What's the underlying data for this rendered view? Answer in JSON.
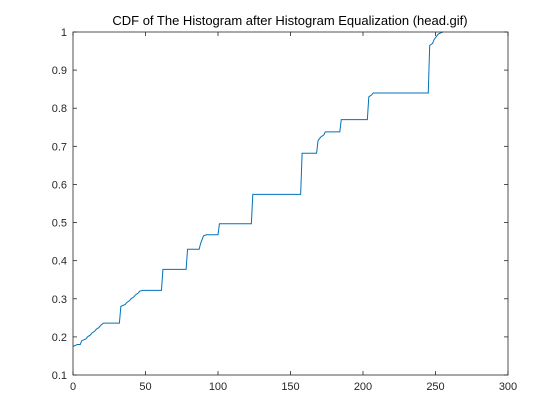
{
  "chart_data": {
    "type": "line",
    "title": "CDF of The Histogram after Histogram Equalization (head.gif)",
    "xlabel": "",
    "ylabel": "",
    "xlim": [
      0,
      300
    ],
    "ylim": [
      0.1,
      1
    ],
    "xticks": [
      0,
      50,
      100,
      150,
      200,
      250,
      300
    ],
    "xtick_labels": [
      "0",
      "50",
      "100",
      "150",
      "200",
      "250",
      "300"
    ],
    "yticks": [
      0.1,
      0.2,
      0.3,
      0.4,
      0.5,
      0.6,
      0.7,
      0.8,
      0.9,
      1.0
    ],
    "ytick_labels": [
      "0.1",
      "0.2",
      "0.3",
      "0.4",
      "0.5",
      "0.6",
      "0.7",
      "0.8",
      "0.9",
      "1"
    ],
    "grid": false,
    "legend": "none",
    "line_color": "#0072bd",
    "series": [
      {
        "x": [
          0,
          3,
          5,
          6,
          9,
          10,
          12,
          13,
          15,
          16,
          18,
          19,
          21,
          32,
          33,
          36,
          37,
          39,
          40,
          42,
          43,
          45,
          46,
          48,
          61,
          62,
          78,
          79,
          87,
          88,
          89,
          90,
          92,
          100,
          101,
          123,
          124,
          157,
          158,
          168,
          169,
          170,
          171,
          173,
          174,
          184,
          185,
          203,
          204,
          206,
          207,
          245,
          246,
          248,
          249,
          251,
          252,
          255
        ],
        "y": [
          0.175,
          0.18,
          0.18,
          0.19,
          0.195,
          0.2,
          0.205,
          0.21,
          0.215,
          0.22,
          0.225,
          0.23,
          0.236,
          0.236,
          0.28,
          0.285,
          0.29,
          0.295,
          0.3,
          0.305,
          0.31,
          0.315,
          0.32,
          0.322,
          0.322,
          0.377,
          0.377,
          0.43,
          0.43,
          0.445,
          0.455,
          0.465,
          0.468,
          0.468,
          0.497,
          0.497,
          0.574,
          0.574,
          0.682,
          0.682,
          0.715,
          0.72,
          0.725,
          0.73,
          0.738,
          0.738,
          0.77,
          0.77,
          0.83,
          0.835,
          0.84,
          0.84,
          0.965,
          0.97,
          0.98,
          0.99,
          0.995,
          1.0
        ]
      }
    ]
  }
}
